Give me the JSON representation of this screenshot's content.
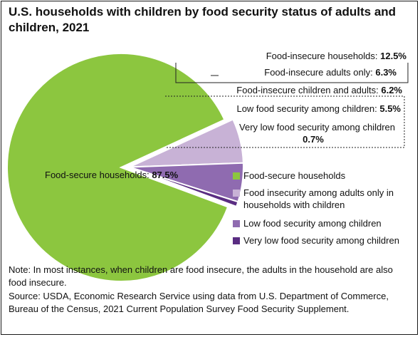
{
  "title": "U.S. households with children by food security status of adults and children, 2021",
  "note": "Note: In most instances, when children are food insecure, the adults in the household are also food insecure.",
  "source": "Source: USDA, Economic Research Service using data from U.S. Department of Commerce, Bureau of the Census, 2021 Current Population Survey Food Security Supplement.",
  "colors": {
    "food_secure": "#8cc63f",
    "adults_only": "#c8b2d6",
    "low_children": "#8f6bb0",
    "very_low_children": "#5a2d82"
  },
  "chart_data": {
    "type": "pie",
    "slices": [
      {
        "name": "Food-secure households",
        "value": 87.5,
        "color": "#8cc63f"
      },
      {
        "name": "Food insecurity among adults only in households with children",
        "value": 6.3,
        "color": "#c8b2d6"
      },
      {
        "name": "Low food security among children",
        "value": 5.5,
        "color": "#8f6bb0"
      },
      {
        "name": "Very low food security among children",
        "value": 0.7,
        "color": "#5a2d82"
      }
    ],
    "callouts": {
      "food_insecure_households": {
        "label": "Food-insecure households: ",
        "value": "12.5%"
      },
      "adults_only": {
        "label": "Food-insecure adults only: ",
        "value": "6.3%"
      },
      "children_and_adults": {
        "label": "Food-insecure children and adults: ",
        "value": "6.2%"
      },
      "low_children": {
        "label": "Low food security among children: ",
        "value": "5.5%"
      },
      "very_low_children_line1": "Very low food security among children",
      "very_low_children_value": "0.7%"
    },
    "slice_label": {
      "label": "Food-secure households: ",
      "value": "87.5%"
    },
    "legend": [
      {
        "lines": [
          "Food-secure households"
        ],
        "color": "#8cc63f"
      },
      {
        "lines": [
          "Food insecurity among adults only in",
          "households with children"
        ],
        "color": "#c8b2d6"
      },
      {
        "lines": [
          "Low food security among children"
        ],
        "color": "#8f6bb0"
      },
      {
        "lines": [
          "Very low food security among children"
        ],
        "color": "#5a2d82"
      }
    ]
  }
}
